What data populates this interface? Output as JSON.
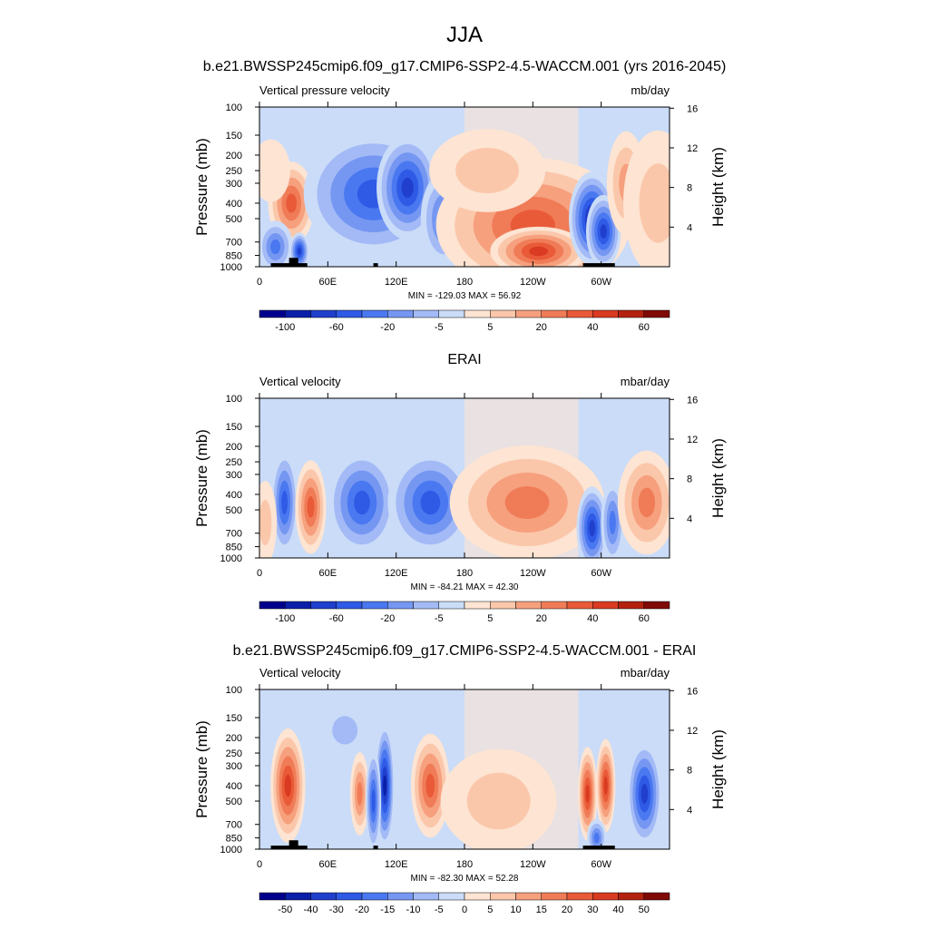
{
  "figure": {
    "title": "JJA",
    "colors": {
      "frame": "#000000",
      "land": "#000000",
      "background": "#ffffff"
    }
  },
  "chart_data": [
    {
      "type": "heatmap",
      "title": "b.e21.BWSSP245cmip6.f09_g17.CMIP6-SSP2-4.5-WACCM.001 (yrs 2016-2045)",
      "left_label": "Vertical pressure velocity",
      "units": "mb/day",
      "ylabel": "Pressure (mb)",
      "right_label": "Height (km)",
      "x_ticks": [
        "0",
        "60E",
        "120E",
        "180",
        "120W",
        "60W"
      ],
      "x_tick_lons": [
        0,
        60,
        120,
        180,
        240,
        300
      ],
      "xlim": [
        0,
        360
      ],
      "pressure_levels": [
        100,
        150,
        200,
        250,
        300,
        400,
        500,
        700,
        850,
        1000
      ],
      "ylim": [
        100,
        1000
      ],
      "height_ticks": [
        "4",
        "8",
        "12",
        "16"
      ],
      "height_tick_km": [
        4,
        8,
        12,
        16
      ],
      "stats": "MIN = -129.03  MAX =  56.92",
      "colorbar_labels": [
        "-100",
        "-60",
        "-20",
        "-5",
        "5",
        "20",
        "40",
        "60"
      ],
      "colorbar_colors": [
        "#00008c",
        "#0a1fa8",
        "#1f3fcc",
        "#2f5ae6",
        "#4a78f0",
        "#7597f2",
        "#a3baf6",
        "#cadcf8",
        "#fde4d3",
        "#fbc7aa",
        "#f6a07e",
        "#f07c57",
        "#e95a38",
        "#d93a21",
        "#b3220f",
        "#7f0a06"
      ],
      "features": [
        {
          "lon": 28,
          "p": 400,
          "dlon": 12,
          "dp": 0.4,
          "level": 12
        },
        {
          "lon": 14,
          "p": 750,
          "dlon": 9,
          "dp": 0.25,
          "level": 4
        },
        {
          "lon": 35,
          "p": 800,
          "dlon": 5,
          "dp": 0.18,
          "level": 2
        },
        {
          "lon": 100,
          "p": 350,
          "dlon": 36,
          "dp": 0.6,
          "level": 3
        },
        {
          "lon": 130,
          "p": 320,
          "dlon": 16,
          "dp": 0.5,
          "level": 2
        },
        {
          "lon": 162,
          "p": 500,
          "dlon": 12,
          "dp": 0.45,
          "level": 4
        },
        {
          "lon": 240,
          "p": 550,
          "dlon": 50,
          "dp": 0.7,
          "level": 12
        },
        {
          "lon": 245,
          "p": 800,
          "dlon": 25,
          "dp": 0.25,
          "level": 13
        },
        {
          "lon": 292,
          "p": 500,
          "dlon": 12,
          "dp": 0.45,
          "level": 1
        },
        {
          "lon": 302,
          "p": 600,
          "dlon": 9,
          "dp": 0.35,
          "level": 2
        },
        {
          "lon": 322,
          "p": 300,
          "dlon": 10,
          "dp": 0.5,
          "level": 10
        },
        {
          "lon": 350,
          "p": 400,
          "dlon": 18,
          "dp": 0.7,
          "level": 9
        },
        {
          "lon": 200,
          "p": 250,
          "dlon": 30,
          "dp": 0.4,
          "level": 9
        },
        {
          "lon": 10,
          "p": 250,
          "dlon": 10,
          "dp": 0.3,
          "level": 8
        }
      ],
      "land": [
        {
          "lon0": 10,
          "lon1": 42,
          "p": 950
        },
        {
          "lon0": 26,
          "lon1": 34,
          "p": 880
        },
        {
          "lon0": 100,
          "lon1": 104,
          "p": 950
        },
        {
          "lon0": 284,
          "lon1": 312,
          "p": 950
        }
      ]
    },
    {
      "type": "heatmap",
      "title": "ERAI",
      "left_label": "Vertical velocity",
      "units": "mbar/day",
      "ylabel": "Pressure (mb)",
      "right_label": "Height (km)",
      "x_ticks": [
        "0",
        "60E",
        "120E",
        "180",
        "120W",
        "60W"
      ],
      "x_tick_lons": [
        0,
        60,
        120,
        180,
        240,
        300
      ],
      "xlim": [
        0,
        360
      ],
      "pressure_levels": [
        100,
        150,
        200,
        250,
        300,
        400,
        500,
        700,
        850,
        1000
      ],
      "ylim": [
        100,
        1000
      ],
      "height_ticks": [
        "4",
        "8",
        "12",
        "16"
      ],
      "height_tick_km": [
        4,
        8,
        12,
        16
      ],
      "stats": "MIN = -84.21  MAX =  42.30",
      "colorbar_labels": [
        "-100",
        "-60",
        "-20",
        "-5",
        "5",
        "20",
        "40",
        "60"
      ],
      "colorbar_colors": [
        "#00008c",
        "#0a1fa8",
        "#1f3fcc",
        "#2f5ae6",
        "#4a78f0",
        "#7597f2",
        "#a3baf6",
        "#cadcf8",
        "#fde4d3",
        "#fbc7aa",
        "#f6a07e",
        "#f07c57",
        "#e95a38",
        "#d93a21",
        "#b3220f",
        "#7f0a06"
      ],
      "features": [
        {
          "lon": 22,
          "p": 450,
          "dlon": 7,
          "dp": 0.5,
          "level": 3
        },
        {
          "lon": 45,
          "p": 480,
          "dlon": 8,
          "dp": 0.45,
          "level": 12
        },
        {
          "lon": 90,
          "p": 450,
          "dlon": 18,
          "dp": 0.5,
          "level": 3
        },
        {
          "lon": 150,
          "p": 450,
          "dlon": 22,
          "dp": 0.5,
          "level": 3
        },
        {
          "lon": 235,
          "p": 450,
          "dlon": 40,
          "dp": 0.55,
          "level": 11
        },
        {
          "lon": 292,
          "p": 650,
          "dlon": 8,
          "dp": 0.4,
          "level": 2
        },
        {
          "lon": 310,
          "p": 600,
          "dlon": 6,
          "dp": 0.4,
          "level": 4
        },
        {
          "lon": 340,
          "p": 450,
          "dlon": 15,
          "dp": 0.5,
          "level": 11
        },
        {
          "lon": 5,
          "p": 600,
          "dlon": 6,
          "dp": 0.4,
          "level": 9
        }
      ],
      "land": []
    },
    {
      "type": "heatmap",
      "title": "b.e21.BWSSP245cmip6.f09_g17.CMIP6-SSP2-4.5-WACCM.001 - ERAI",
      "left_label": "Vertical velocity",
      "units": "mbar/day",
      "ylabel": "Pressure (mb)",
      "right_label": "Height (km)",
      "x_ticks": [
        "0",
        "60E",
        "120E",
        "180",
        "120W",
        "60W"
      ],
      "x_tick_lons": [
        0,
        60,
        120,
        180,
        240,
        300
      ],
      "xlim": [
        0,
        360
      ],
      "pressure_levels": [
        100,
        150,
        200,
        250,
        300,
        400,
        500,
        700,
        850,
        1000
      ],
      "ylim": [
        100,
        1000
      ],
      "height_ticks": [
        "4",
        "8",
        "12",
        "16"
      ],
      "height_tick_km": [
        4,
        8,
        12,
        16
      ],
      "stats": "MIN = -82.30  MAX =  52.28",
      "colorbar_labels": [
        "-50",
        "-40",
        "-30",
        "-20",
        "-15",
        "-10",
        "-5",
        "0",
        "5",
        "10",
        "15",
        "20",
        "30",
        "40",
        "50"
      ],
      "colorbar_colors": [
        "#00008c",
        "#0a1fa8",
        "#1f3fcc",
        "#2f5ae6",
        "#4a78f0",
        "#7597f2",
        "#a3baf6",
        "#cadcf8",
        "#fde4d3",
        "#fbc7aa",
        "#f6a07e",
        "#f07c57",
        "#e95a38",
        "#d93a21",
        "#b3220f",
        "#7f0a06"
      ],
      "features": [
        {
          "lon": 25,
          "p": 400,
          "dlon": 9,
          "dp": 0.55,
          "level": 13
        },
        {
          "lon": 88,
          "p": 450,
          "dlon": 5,
          "dp": 0.4,
          "level": 11
        },
        {
          "lon": 110,
          "p": 400,
          "dlon": 5,
          "dp": 0.6,
          "level": 1
        },
        {
          "lon": 100,
          "p": 500,
          "dlon": 4,
          "dp": 0.5,
          "level": 3
        },
        {
          "lon": 150,
          "p": 400,
          "dlon": 10,
          "dp": 0.5,
          "level": 12
        },
        {
          "lon": 75,
          "p": 180,
          "dlon": 12,
          "dp": 0.25,
          "level": 6
        },
        {
          "lon": 288,
          "p": 450,
          "dlon": 5,
          "dp": 0.45,
          "level": 13
        },
        {
          "lon": 304,
          "p": 400,
          "dlon": 5,
          "dp": 0.45,
          "level": 13
        },
        {
          "lon": 338,
          "p": 450,
          "dlon": 9,
          "dp": 0.5,
          "level": 2
        },
        {
          "lon": 210,
          "p": 500,
          "dlon": 30,
          "dp": 0.5,
          "level": 9
        },
        {
          "lon": 296,
          "p": 850,
          "dlon": 5,
          "dp": 0.2,
          "level": 4
        }
      ],
      "land": [
        {
          "lon0": 10,
          "lon1": 42,
          "p": 950
        },
        {
          "lon0": 26,
          "lon1": 34,
          "p": 880
        },
        {
          "lon0": 100,
          "lon1": 104,
          "p": 950
        },
        {
          "lon0": 284,
          "lon1": 312,
          "p": 950
        }
      ]
    }
  ]
}
